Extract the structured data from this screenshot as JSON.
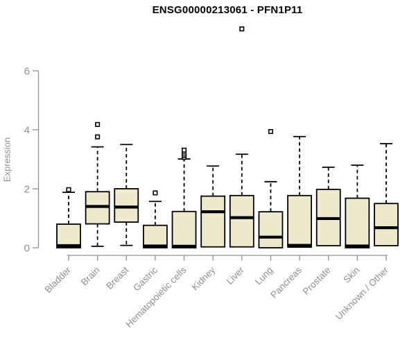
{
  "chart": {
    "title": "ENSG00000213061 - PFN1P11",
    "ylabel": "Expression",
    "colors": {
      "background": "#FFFFFF",
      "box_fill": "#EEE8CD",
      "box_border": "#000000",
      "axis": "#8F8F8F",
      "tick_label": "#8F8F8F",
      "title": "#000000"
    }
  },
  "chart_data": {
    "type": "boxplot",
    "title": "ENSG00000213061 - PFN1P11",
    "xlabel": "",
    "ylabel": "Expression",
    "ylim": [
      0,
      6
    ],
    "yticks": [
      0,
      2,
      4,
      6
    ],
    "grid": false,
    "legend": null,
    "categories": [
      "Bladder",
      "Brain",
      "Breast",
      "Gastric",
      "Hematopoietic cells",
      "Kidney",
      "Liver",
      "Lung",
      "Pancreas",
      "Prostate",
      "Skin",
      "Unknown / Other"
    ],
    "series": [
      {
        "name": "Bladder",
        "q1": 0.0,
        "median": 0.07,
        "q3": 0.8,
        "whisker_low": null,
        "whisker_high": 1.88,
        "outliers": [
          1.97
        ]
      },
      {
        "name": "Brain",
        "q1": 0.81,
        "median": 1.4,
        "q3": 1.9,
        "whisker_low": 0.05,
        "whisker_high": 3.42,
        "outliers": [
          3.76,
          4.18
        ]
      },
      {
        "name": "Breast",
        "q1": 0.87,
        "median": 1.38,
        "q3": 2.0,
        "whisker_low": 0.08,
        "whisker_high": 3.5,
        "outliers": []
      },
      {
        "name": "Gastric",
        "q1": 0.0,
        "median": 0.06,
        "q3": 0.76,
        "whisker_low": null,
        "whisker_high": 1.57,
        "outliers": [
          1.86
        ]
      },
      {
        "name": "Hematopoietic cells",
        "q1": 0.0,
        "median": 0.05,
        "q3": 1.23,
        "whisker_low": null,
        "whisker_high": 3.01,
        "outliers": [
          3.06,
          3.12,
          3.18,
          3.25,
          3.31
        ]
      },
      {
        "name": "Kidney",
        "q1": 0.03,
        "median": 1.22,
        "q3": 1.75,
        "whisker_low": null,
        "whisker_high": 2.77,
        "outliers": []
      },
      {
        "name": "Liver",
        "q1": 0.03,
        "median": 1.02,
        "q3": 1.77,
        "whisker_low": null,
        "whisker_high": 3.17,
        "outliers": [
          7.42
        ]
      },
      {
        "name": "Lung",
        "q1": 0.0,
        "median": 0.36,
        "q3": 1.22,
        "whisker_low": null,
        "whisker_high": 2.24,
        "outliers": [
          3.94
        ]
      },
      {
        "name": "Pancreas",
        "q1": 0.02,
        "median": 0.08,
        "q3": 1.77,
        "whisker_low": null,
        "whisker_high": 3.77,
        "outliers": []
      },
      {
        "name": "Prostate",
        "q1": 0.07,
        "median": 0.99,
        "q3": 1.98,
        "whisker_low": null,
        "whisker_high": 2.73,
        "outliers": []
      },
      {
        "name": "Skin",
        "q1": 0.0,
        "median": 0.06,
        "q3": 1.68,
        "whisker_low": null,
        "whisker_high": 2.8,
        "outliers": []
      },
      {
        "name": "Unknown / Other",
        "q1": 0.07,
        "median": 0.68,
        "q3": 1.5,
        "whisker_low": null,
        "whisker_high": 3.53,
        "outliers": []
      }
    ]
  }
}
